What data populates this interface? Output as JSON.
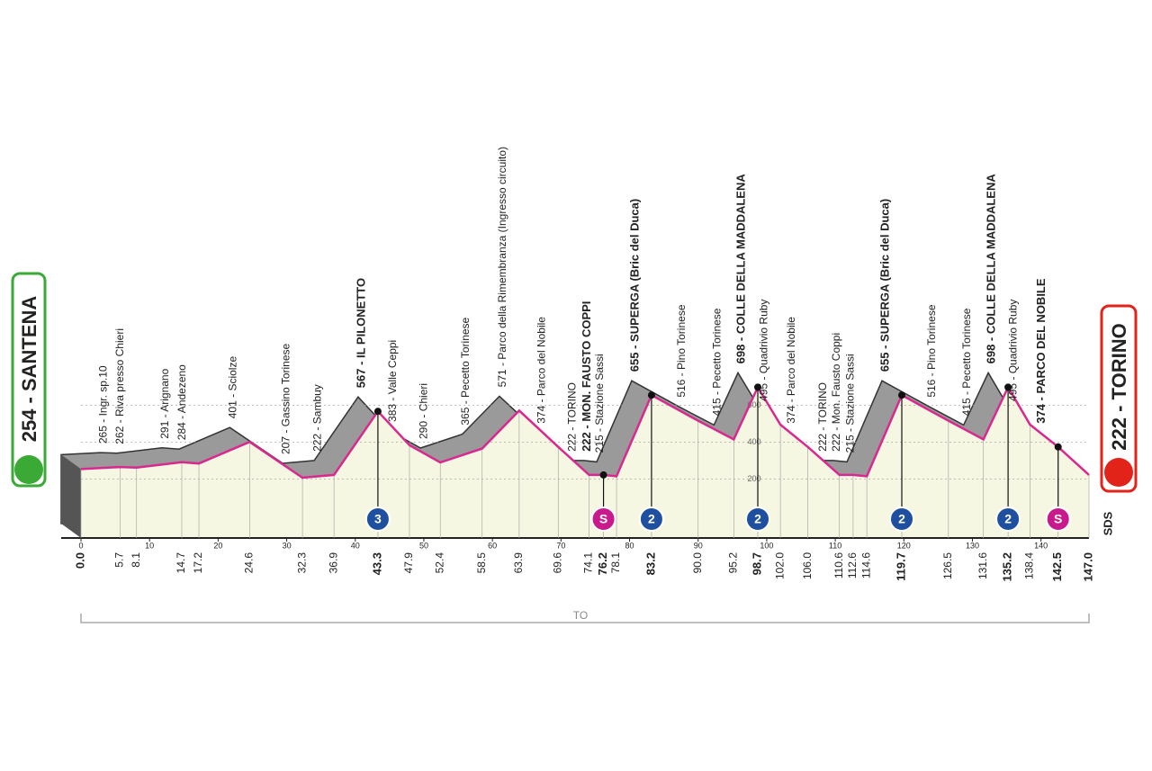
{
  "chart_data": {
    "type": "area",
    "start": "254 - SANTENA",
    "finish": "222 - TORINO",
    "route_code": "TO",
    "brand": "SDS",
    "profile_color": "#d9288f",
    "fill_color": "#f6f7e2",
    "side_color": "#9a9a9a",
    "x": [
      0,
      5.7,
      8.1,
      14.7,
      17.2,
      24.6,
      32.3,
      36.9,
      43.3,
      47.9,
      52.4,
      58.5,
      63.9,
      69.6,
      74.1,
      76.2,
      78.1,
      83.2,
      90.0,
      95.2,
      98.7,
      102.0,
      106.0,
      110.6,
      112.6,
      114.6,
      119.7,
      126.5,
      131.6,
      135.2,
      138.4,
      142.5,
      147.0
    ],
    "x_labels": [
      "0.0",
      "5.7",
      "8.1",
      "14.7",
      "17.2",
      "24.6",
      "32.3",
      "36.9",
      "43.3",
      "47.9",
      "52.4",
      "58.5",
      "63.9",
      "69.6",
      "74.1",
      "76.2",
      "78.1",
      "83.2",
      "90.0",
      "95.2",
      "98.7",
      "102.0",
      "106.0",
      "110.6",
      "112.6",
      "114.6",
      "119.7",
      "126.5",
      "131.6",
      "135.2",
      "138.4",
      "142.5",
      "147.0"
    ],
    "altitude": [
      254,
      265,
      262,
      291,
      284,
      401,
      207,
      222,
      567,
      383,
      290,
      365,
      571,
      374,
      222,
      222,
      215,
      655,
      516,
      415,
      698,
      495,
      374,
      222,
      222,
      215,
      655,
      516,
      415,
      698,
      495,
      374,
      222
    ],
    "labels": [
      "254 - SANTENA",
      "265 - Ingr. sp.10",
      "262 - Riva presso Chieri",
      "291 - Arignano",
      "284 - Andezeno",
      "401 - Sciolze",
      "207 - Gassino Torinese",
      "222 - Sambuy",
      "567 - IL PILONETTO",
      "383 - Valle Ceppi",
      "290 - Chieri",
      "365 - Pecetto Torinese",
      "571 - Parco della Rimembranza (Ingresso circuito)",
      "374 - Parco del Nobile",
      "222 - TORINO",
      "222 - MON. FAUSTO COPPI",
      "215 - Stazione Sassi",
      "655 - SUPERGA (Bric del Duca)",
      "516 - Pino Torinese",
      "415 - Pecetto Torinese",
      "698 - COLLE DELLA MADDALENA",
      "495 - Quadrivio Ruby",
      "374 - Parco del Nobile",
      "222 - TORINO",
      "222 - Mon. Fausto Coppi",
      "215 - Stazione Sassi",
      "655 - SUPERGA (Bric del Duca)",
      "516 - Pino Torinese",
      "415 - Pecetto Torinese",
      "698 - COLLE DELLA MADDALENA",
      "495 - Quadrivio Ruby",
      "374 - PARCO DEL NOBILE",
      "222 - TORINO"
    ],
    "bold": [
      true,
      false,
      false,
      false,
      false,
      false,
      false,
      false,
      true,
      false,
      false,
      false,
      false,
      false,
      false,
      true,
      false,
      true,
      false,
      false,
      true,
      false,
      false,
      false,
      false,
      false,
      true,
      false,
      false,
      true,
      false,
      true,
      true
    ],
    "climbs": [
      {
        "km": 43.3,
        "label": "3",
        "color": "#1f4f9f"
      },
      {
        "km": 76.2,
        "label": "S",
        "color": "#c81a8c"
      },
      {
        "km": 83.2,
        "label": "2",
        "color": "#1f4f9f"
      },
      {
        "km": 98.7,
        "label": "2",
        "color": "#1f4f9f"
      },
      {
        "km": 119.7,
        "label": "2",
        "color": "#1f4f9f"
      },
      {
        "km": 135.2,
        "label": "2",
        "color": "#1f4f9f"
      },
      {
        "km": 142.5,
        "label": "S",
        "color": "#c81a8c"
      }
    ],
    "xlim": [
      0,
      147
    ],
    "xticks": [
      0,
      10,
      20,
      30,
      40,
      50,
      60,
      70,
      80,
      90,
      100,
      110,
      120,
      130,
      140
    ],
    "ylim": [
      -120,
      1100
    ],
    "yticks": [
      200,
      400,
      600
    ]
  }
}
